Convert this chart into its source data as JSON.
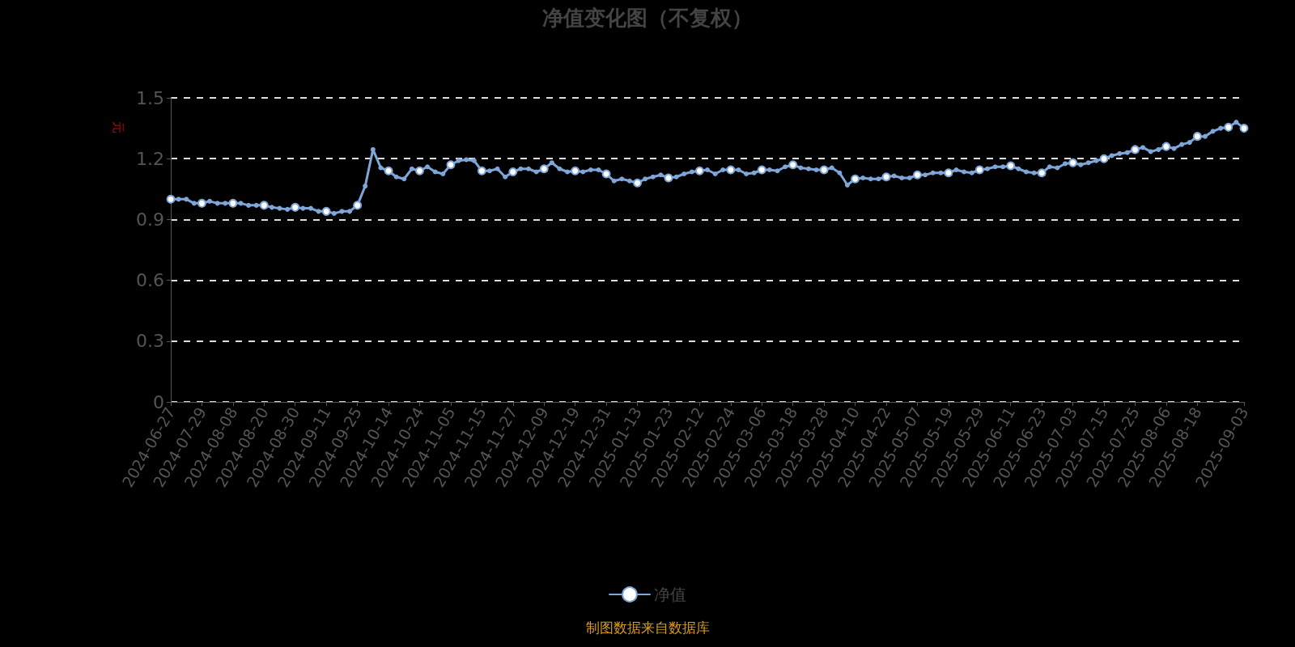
{
  "chart_data": {
    "type": "line",
    "title": "净值变化图（不复权）",
    "ylabel": "元",
    "annotations": [
      "制图数据来自数据库"
    ],
    "categories": [
      "2024-06-27",
      null,
      null,
      null,
      "2024-07-29",
      null,
      null,
      null,
      "2024-08-08",
      null,
      null,
      null,
      "2024-08-20",
      null,
      null,
      null,
      "2024-08-30",
      null,
      null,
      null,
      "2024-09-11",
      null,
      null,
      null,
      "2024-09-25",
      null,
      null,
      null,
      "2024-10-14",
      null,
      null,
      null,
      "2024-10-24",
      null,
      null,
      null,
      "2024-11-05",
      null,
      null,
      null,
      "2024-11-15",
      null,
      null,
      null,
      "2024-11-27",
      null,
      null,
      null,
      "2024-12-09",
      null,
      null,
      null,
      "2024-12-19",
      null,
      null,
      null,
      "2024-12-31",
      null,
      null,
      null,
      "2025-01-13",
      null,
      null,
      null,
      "2025-01-23",
      null,
      null,
      null,
      "2025-02-12",
      null,
      null,
      null,
      "2025-02-24",
      null,
      null,
      null,
      "2025-03-06",
      null,
      null,
      null,
      "2025-03-18",
      null,
      null,
      null,
      "2025-03-28",
      null,
      null,
      null,
      "2025-04-10",
      null,
      null,
      null,
      "2025-04-22",
      null,
      null,
      null,
      "2025-05-07",
      null,
      null,
      null,
      "2025-05-19",
      null,
      null,
      null,
      "2025-05-29",
      null,
      null,
      null,
      "2025-06-11",
      null,
      null,
      null,
      "2025-06-23",
      null,
      null,
      null,
      "2025-07-03",
      null,
      null,
      null,
      "2025-07-15",
      null,
      null,
      null,
      "2025-07-25",
      null,
      null,
      null,
      "2025-08-06",
      null,
      null,
      null,
      "2025-08-18",
      null,
      null,
      null,
      null,
      null,
      "2025-09-03"
    ],
    "series": [
      {
        "name": "净值",
        "color": "#7ea6d8",
        "values": [
          1.0,
          1.0,
          1.0,
          0.98,
          0.98,
          0.99,
          0.98,
          0.98,
          0.98,
          0.98,
          0.97,
          0.97,
          0.97,
          0.96,
          0.955,
          0.95,
          0.96,
          0.955,
          0.955,
          0.94,
          0.94,
          0.93,
          0.94,
          0.94,
          0.97,
          1.065,
          1.245,
          1.155,
          1.14,
          1.11,
          1.1,
          1.15,
          1.14,
          1.16,
          1.135,
          1.125,
          1.17,
          1.19,
          1.195,
          1.19,
          1.14,
          1.14,
          1.15,
          1.11,
          1.135,
          1.15,
          1.15,
          1.135,
          1.15,
          1.18,
          1.15,
          1.135,
          1.14,
          1.135,
          1.145,
          1.145,
          1.125,
          1.09,
          1.1,
          1.09,
          1.08,
          1.1,
          1.11,
          1.12,
          1.105,
          1.11,
          1.125,
          1.135,
          1.14,
          1.145,
          1.125,
          1.145,
          1.145,
          1.145,
          1.125,
          1.13,
          1.145,
          1.145,
          1.14,
          1.16,
          1.17,
          1.155,
          1.15,
          1.145,
          1.145,
          1.155,
          1.13,
          1.07,
          1.1,
          1.105,
          1.1,
          1.1,
          1.11,
          1.115,
          1.105,
          1.105,
          1.12,
          1.12,
          1.13,
          1.13,
          1.13,
          1.145,
          1.135,
          1.13,
          1.145,
          1.15,
          1.16,
          1.16,
          1.165,
          1.15,
          1.135,
          1.13,
          1.13,
          1.16,
          1.155,
          1.175,
          1.18,
          1.17,
          1.18,
          1.19,
          1.2,
          1.215,
          1.225,
          1.23,
          1.245,
          1.255,
          1.235,
          1.245,
          1.26,
          1.25,
          1.27,
          1.28,
          1.31,
          1.31,
          1.335,
          1.35,
          1.355,
          1.38,
          1.35
        ]
      }
    ],
    "ylim": [
      0,
      1.5
    ],
    "yticks": [
      0,
      0.3,
      0.6,
      0.9,
      1.2,
      1.5
    ],
    "grid": "y",
    "legend": "bottom",
    "marker": "circle",
    "line_style": "solid"
  }
}
